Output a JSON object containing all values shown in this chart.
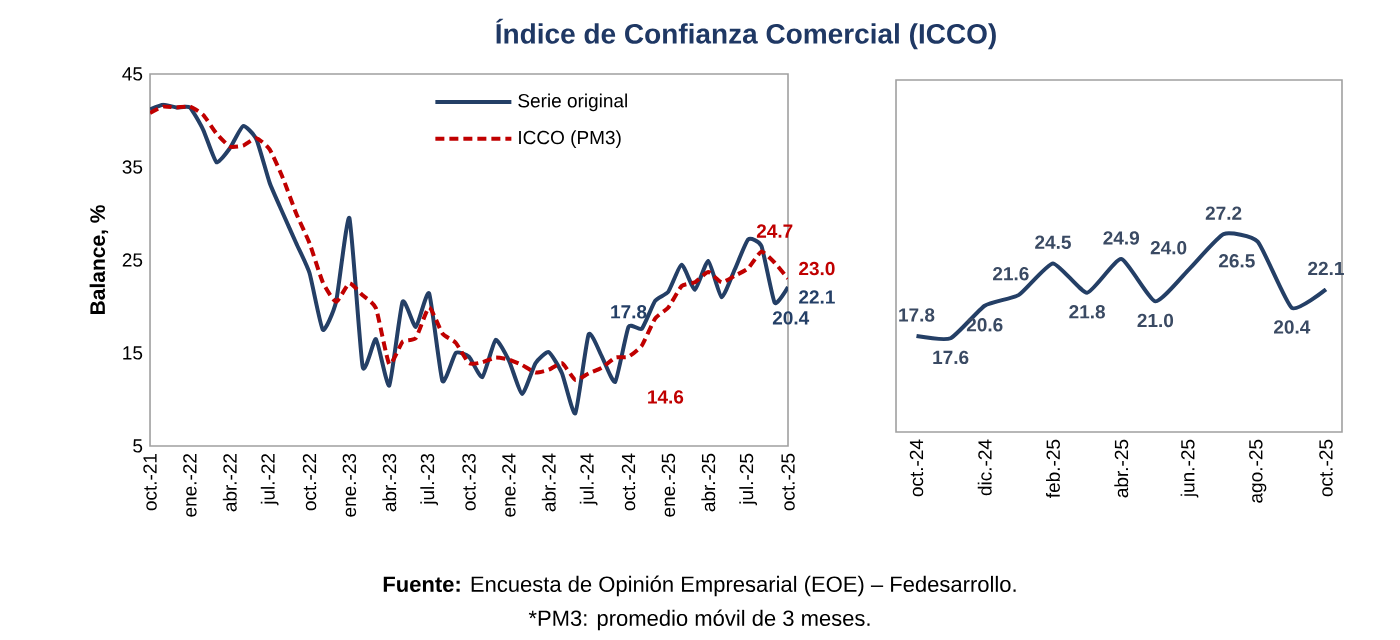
{
  "chart_data": [
    {
      "type": "line",
      "title": "Índice de Confianza Comercial (ICCO)",
      "ylabel": "Balance, %",
      "categories": [
        "oct.-21",
        null,
        null,
        "ene.-22",
        null,
        null,
        "abr.-22",
        null,
        null,
        "jul.-22",
        null,
        null,
        "oct.-22",
        null,
        null,
        "ene.-23",
        null,
        null,
        "abr.-23",
        null,
        null,
        "jul.-23",
        null,
        null,
        "oct.-23",
        null,
        null,
        "ene.-24",
        null,
        null,
        "abr.-24",
        null,
        null,
        "jul.-24",
        null,
        null,
        "oct.-24",
        null,
        null,
        "ene.-25",
        null,
        null,
        "abr.-25",
        null,
        null,
        "jul.-25",
        null,
        null,
        "oct.-25"
      ],
      "series": [
        {
          "name": "Serie original",
          "color": "#243f66",
          "line_style": "solid",
          "values": [
            41.2,
            41.7,
            41.4,
            41.4,
            39.0,
            35.5,
            37.0,
            39.4,
            38.0,
            33.3,
            30.0,
            26.8,
            23.6,
            17.5,
            20.5,
            29.5,
            13.5,
            16.5,
            11.5,
            20.5,
            17.8,
            21.4,
            12.0,
            15.0,
            14.6,
            12.4,
            16.4,
            14.2,
            10.6,
            13.9,
            15.1,
            12.8,
            8.5,
            17.0,
            14.6,
            11.9,
            17.8,
            17.6,
            20.6,
            21.6,
            24.5,
            21.8,
            24.9,
            21.0,
            24.0,
            27.2,
            26.5,
            20.4,
            22.1
          ],
          "value_labels": [
            null,
            null,
            null,
            null,
            null,
            null,
            null,
            null,
            null,
            null,
            null,
            null,
            null,
            null,
            null,
            null,
            null,
            null,
            null,
            null,
            null,
            null,
            null,
            null,
            null,
            null,
            null,
            null,
            null,
            null,
            null,
            null,
            null,
            null,
            null,
            null,
            "17.8",
            null,
            null,
            null,
            null,
            null,
            null,
            null,
            null,
            null,
            null,
            "20.4",
            "22.1"
          ]
        },
        {
          "name": "ICCO (PM3)",
          "color": "#c00000",
          "line_style": "dashed",
          "values": [
            40.8,
            41.5,
            41.4,
            41.5,
            40.6,
            38.6,
            37.2,
            37.3,
            38.1,
            36.9,
            33.8,
            30.0,
            26.8,
            22.6,
            20.5,
            22.5,
            21.2,
            19.8,
            13.8,
            16.2,
            16.6,
            19.9,
            17.1,
            16.1,
            13.9,
            14.0,
            14.5,
            14.3,
            13.7,
            12.9,
            13.2,
            13.9,
            12.1,
            12.8,
            13.4,
            14.5,
            14.6,
            15.8,
            18.7,
            19.9,
            22.2,
            22.6,
            23.7,
            22.6,
            23.3,
            24.1,
            25.9,
            24.7,
            23.0
          ],
          "value_labels": [
            null,
            null,
            null,
            null,
            null,
            null,
            null,
            null,
            null,
            null,
            null,
            null,
            null,
            null,
            null,
            null,
            null,
            null,
            null,
            null,
            null,
            null,
            null,
            null,
            null,
            null,
            null,
            null,
            null,
            null,
            null,
            null,
            null,
            null,
            null,
            null,
            "14.6",
            null,
            null,
            null,
            null,
            null,
            null,
            null,
            null,
            null,
            null,
            "24.7",
            "23.0"
          ]
        }
      ],
      "ylim": [
        5,
        45
      ],
      "yticks": [
        5,
        15,
        25,
        35,
        45
      ],
      "legend": "top",
      "annotations": [
        "**Fuente:** Encuesta de Opinión Empresarial (EOE) – Fedesarrollo.",
        "*PM3: promedio móvil de 3 meses."
      ]
    },
    {
      "type": "line",
      "categories": [
        "oct.-24",
        null,
        "dic.-24",
        null,
        "feb.-25",
        null,
        "abr.-25",
        null,
        "jun.-25",
        null,
        "ago.-25",
        null,
        "oct.-25"
      ],
      "series": [
        {
          "color": "#243f66",
          "values": [
            17.8,
            17.6,
            20.6,
            21.6,
            24.5,
            21.8,
            24.9,
            21.0,
            24.0,
            27.2,
            26.5,
            20.4,
            22.1
          ],
          "value_labels": [
            "17.8",
            "17.6",
            "20.6",
            "21.6",
            "24.5",
            "21.8",
            "24.9",
            "21.0",
            "24.0",
            "27.2",
            "26.5",
            "20.4",
            "22.1"
          ]
        }
      ],
      "tick_labels": "x"
    }
  ]
}
